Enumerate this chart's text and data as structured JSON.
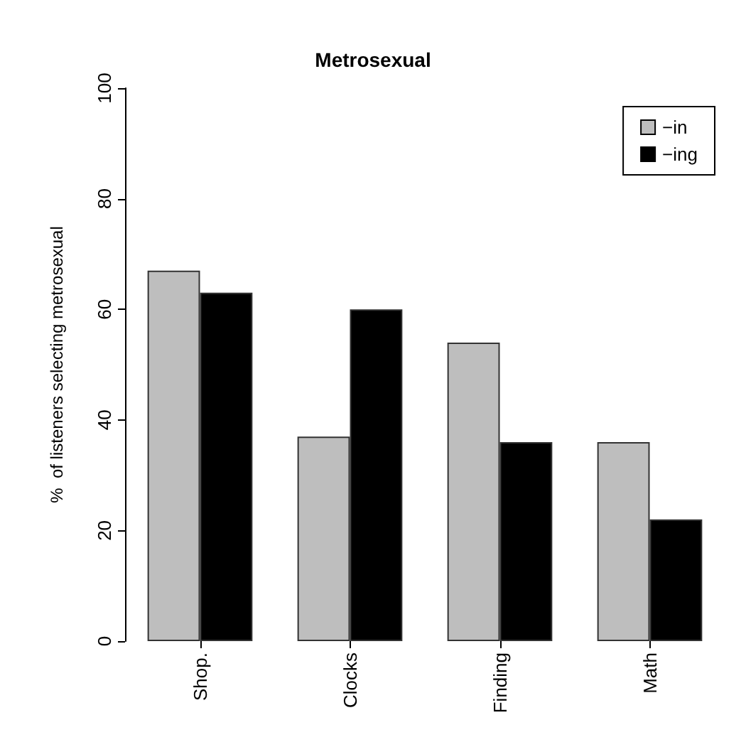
{
  "chart_data": {
    "type": "bar",
    "title": "Metrosexual",
    "ylabel": "%  of listeners selecting metrosexual",
    "categories": [
      "Shop.",
      "Clocks",
      "Finding",
      "Math"
    ],
    "series": [
      {
        "name": "−in",
        "color": "#bebebe",
        "values": [
          67,
          37,
          54,
          36
        ]
      },
      {
        "name": "−ing",
        "color": "#000000",
        "values": [
          63,
          60,
          36,
          22
        ]
      }
    ],
    "ylim": [
      0,
      100
    ],
    "yticks": [
      0,
      20,
      40,
      60,
      80,
      100
    ],
    "grid": false,
    "legend": "top right"
  }
}
